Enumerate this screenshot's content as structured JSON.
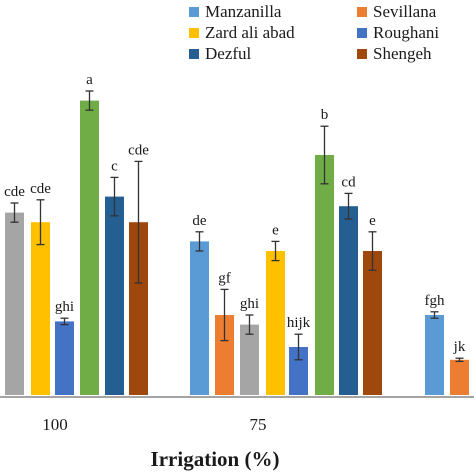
{
  "chart_data": {
    "type": "bar",
    "xlabel": "Irrigation (%)",
    "ylabel": "",
    "ylim": [
      0,
      100
    ],
    "grid": false,
    "legend_position": "top-right",
    "legend": [
      {
        "name": "Manzanilla",
        "color": "#5b9bd5"
      },
      {
        "name": "Sevillana",
        "color": "#ed7d31"
      },
      {
        "name": "Zard ali abad",
        "color": "#ffc000"
      },
      {
        "name": "Roughani",
        "color": "#4472c4"
      },
      {
        "name": "Dezful",
        "color": "#255e91"
      },
      {
        "name": "Shengeh",
        "color": "#9e480e"
      }
    ],
    "groups": [
      {
        "label": "100",
        "bars": [
          {
            "color": "#a5a5a5",
            "value": 57,
            "error": 3,
            "letter": "cde"
          },
          {
            "color": "#ffc000",
            "value": 54,
            "error": 7,
            "letter": "cde"
          },
          {
            "color": "#4472c4",
            "value": 23,
            "error": 1,
            "letter": "ghi"
          },
          {
            "color": "#70ad47",
            "value": 92,
            "error": 3,
            "letter": "a"
          },
          {
            "color": "#255e91",
            "value": 62,
            "error": 6,
            "letter": "c"
          },
          {
            "color": "#9e480e",
            "value": 54,
            "error": 19,
            "letter": "cde"
          }
        ]
      },
      {
        "label": "75",
        "bars": [
          {
            "color": "#5b9bd5",
            "value": 48,
            "error": 3,
            "letter": "de"
          },
          {
            "color": "#ed7d31",
            "value": 25,
            "error": 8,
            "letter": "gf"
          },
          {
            "color": "#a5a5a5",
            "value": 22,
            "error": 3,
            "letter": "ghi"
          },
          {
            "color": "#ffc000",
            "value": 45,
            "error": 3,
            "letter": "e"
          },
          {
            "color": "#4472c4",
            "value": 15,
            "error": 4,
            "letter": "hijk"
          },
          {
            "color": "#70ad47",
            "value": 75,
            "error": 9,
            "letter": "b"
          },
          {
            "color": "#255e91",
            "value": 59,
            "error": 4,
            "letter": "cd"
          },
          {
            "color": "#9e480e",
            "value": 45,
            "error": 6,
            "letter": "e"
          }
        ]
      },
      {
        "label": "",
        "bars": [
          {
            "color": "#5b9bd5",
            "value": 25,
            "error": 1,
            "letter": "fgh"
          },
          {
            "color": "#ed7d31",
            "value": 11,
            "error": 0.5,
            "letter": "jk"
          }
        ]
      }
    ]
  }
}
